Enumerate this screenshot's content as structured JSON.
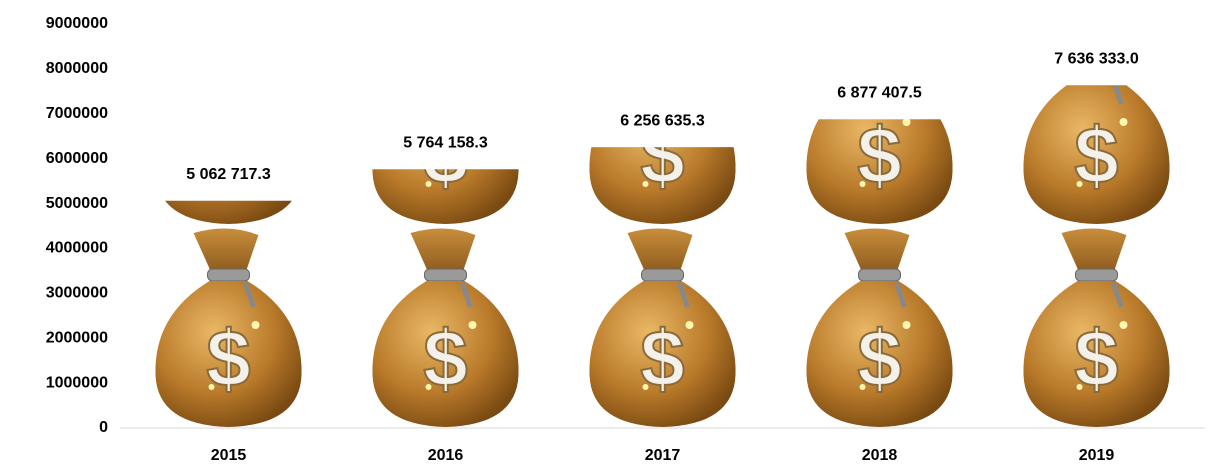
{
  "chart_data": {
    "type": "pictograph-bar",
    "categories": [
      "2015",
      "2016",
      "2017",
      "2018",
      "2019"
    ],
    "values": [
      5062717.3,
      5764158.3,
      6256635.3,
      6877407.5,
      7636333.0
    ],
    "value_labels": [
      "5 062 717.3",
      "5 764 158.3",
      "6 256 635.3",
      "6 877 407.5",
      "7 636 333.0"
    ],
    "ylim": [
      0,
      9000000
    ],
    "yticks": [
      0,
      1000000,
      2000000,
      3000000,
      4000000,
      5000000,
      6000000,
      7000000,
      8000000,
      9000000
    ],
    "grid": false
  }
}
